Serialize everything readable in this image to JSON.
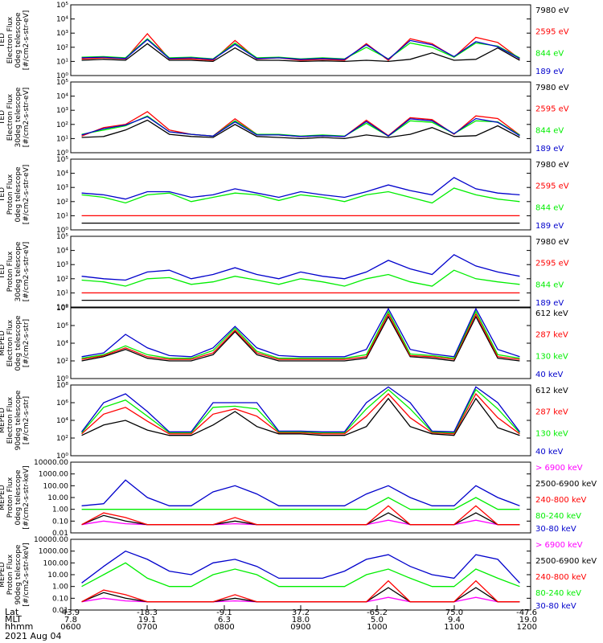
{
  "chart_data": [
    {
      "type": "line",
      "instrument": "TED",
      "ylabel": [
        "TED",
        "Electron Flux",
        "0deg telescope",
        "[#/cm2-s-str-eV]"
      ],
      "yscale": "log",
      "yticks": [
        "10⁰",
        "10¹",
        "10²",
        "10³",
        "10⁴",
        "10⁵"
      ],
      "ylim": [
        1,
        100000
      ],
      "series": [
        {
          "name": "7980 eV",
          "color": "#000000",
          "values": [
            12,
            14,
            12,
            180,
            12,
            12,
            10,
            90,
            12,
            12,
            10,
            11,
            10,
            12,
            10,
            14,
            40,
            12,
            14,
            90,
            12
          ]
        },
        {
          "name": "2595 eV",
          "color": "#ff0000",
          "values": [
            15,
            18,
            15,
            900,
            15,
            15,
            12,
            300,
            15,
            18,
            12,
            14,
            12,
            180,
            12,
            400,
            180,
            20,
            500,
            220,
            15
          ]
        },
        {
          "name": "844 eV",
          "color": "#00ee00",
          "values": [
            20,
            22,
            18,
            400,
            18,
            20,
            15,
            200,
            18,
            20,
            15,
            18,
            15,
            100,
            15,
            200,
            100,
            20,
            200,
            120,
            18
          ]
        },
        {
          "name": "189 eV",
          "color": "#0000cc",
          "values": [
            18,
            20,
            16,
            350,
            16,
            18,
            14,
            160,
            16,
            18,
            14,
            16,
            14,
            150,
            14,
            300,
            150,
            22,
            250,
            110,
            16
          ]
        }
      ]
    },
    {
      "type": "line",
      "instrument": "TED",
      "ylabel": [
        "TED",
        "Electron Flux",
        "30deg telescope",
        "[#/cm2-s-str-eV]"
      ],
      "yscale": "log",
      "yticks": [
        "10⁰",
        "10¹",
        "10²",
        "10³",
        "10⁴",
        "10⁵"
      ],
      "ylim": [
        1,
        100000
      ],
      "series": [
        {
          "name": "7980 eV",
          "color": "#000000",
          "values": [
            12,
            14,
            40,
            200,
            20,
            14,
            12,
            100,
            14,
            12,
            10,
            12,
            10,
            18,
            12,
            20,
            60,
            14,
            16,
            80,
            12
          ]
        },
        {
          "name": "2595 eV",
          "color": "#ff0000",
          "values": [
            15,
            60,
            100,
            800,
            40,
            20,
            15,
            250,
            20,
            18,
            14,
            16,
            14,
            200,
            16,
            300,
            220,
            20,
            400,
            260,
            18
          ]
        },
        {
          "name": "844 eV",
          "color": "#00ee00",
          "values": [
            20,
            40,
            80,
            400,
            30,
            20,
            15,
            180,
            20,
            20,
            15,
            18,
            15,
            120,
            15,
            180,
            140,
            22,
            180,
            150,
            18
          ]
        },
        {
          "name": "189 eV",
          "color": "#0000cc",
          "values": [
            18,
            50,
            90,
            350,
            30,
            20,
            15,
            150,
            18,
            18,
            14,
            16,
            14,
            160,
            15,
            250,
            180,
            22,
            260,
            140,
            16
          ]
        }
      ]
    },
    {
      "type": "line",
      "instrument": "TED",
      "ylabel": [
        "TED",
        "Proton Flux",
        "0deg telescope",
        "[#/cm2-s-str-eV]"
      ],
      "yscale": "log",
      "yticks": [
        "10⁰",
        "10¹",
        "10²",
        "10³",
        "10⁴",
        "10⁵"
      ],
      "ylim": [
        1,
        100000
      ],
      "series": [
        {
          "name": "7980 eV",
          "color": "#000000",
          "values": [
            3,
            3,
            3,
            3,
            3,
            3,
            3,
            3,
            3,
            3,
            3,
            3,
            3,
            3,
            3,
            3,
            3,
            3,
            3,
            3,
            3
          ]
        },
        {
          "name": "2595 eV",
          "color": "#ff0000",
          "values": [
            10,
            10,
            10,
            10,
            10,
            10,
            10,
            10,
            10,
            10,
            10,
            10,
            10,
            10,
            10,
            10,
            10,
            10,
            10,
            10,
            10
          ]
        },
        {
          "name": "844 eV",
          "color": "#00ee00",
          "values": [
            300,
            200,
            80,
            300,
            400,
            100,
            200,
            400,
            300,
            120,
            300,
            200,
            100,
            300,
            500,
            200,
            80,
            900,
            300,
            150,
            100
          ]
        },
        {
          "name": "189 eV",
          "color": "#0000cc",
          "values": [
            400,
            300,
            150,
            500,
            500,
            200,
            300,
            800,
            400,
            200,
            500,
            300,
            200,
            500,
            1500,
            600,
            300,
            5000,
            800,
            400,
            300
          ]
        }
      ]
    },
    {
      "type": "line",
      "instrument": "TED",
      "ylabel": [
        "TED",
        "Proton Flux",
        "30deg telescope",
        "[#/cm2-s-str-eV]"
      ],
      "yscale": "log",
      "yticks": [
        "10⁰",
        "10¹",
        "10²",
        "10³",
        "10⁴",
        "10⁵"
      ],
      "ylim": [
        1,
        100000
      ],
      "series": [
        {
          "name": "7980 eV",
          "color": "#000000",
          "values": [
            3,
            3,
            3,
            3,
            3,
            3,
            3,
            3,
            3,
            3,
            3,
            3,
            3,
            3,
            3,
            3,
            3,
            3,
            3,
            3,
            3
          ]
        },
        {
          "name": "2595 eV",
          "color": "#ff0000",
          "values": [
            10,
            10,
            10,
            10,
            10,
            10,
            10,
            10,
            10,
            10,
            10,
            10,
            10,
            10,
            10,
            10,
            10,
            10,
            10,
            10,
            10
          ]
        },
        {
          "name": "844 eV",
          "color": "#00ee00",
          "values": [
            80,
            60,
            30,
            100,
            120,
            40,
            60,
            150,
            80,
            40,
            100,
            60,
            30,
            100,
            200,
            60,
            30,
            400,
            100,
            60,
            40
          ]
        },
        {
          "name": "189 eV",
          "color": "#0000cc",
          "values": [
            150,
            100,
            80,
            300,
            400,
            100,
            200,
            600,
            200,
            100,
            300,
            150,
            100,
            300,
            2000,
            500,
            200,
            5000,
            800,
            300,
            150
          ]
        }
      ]
    },
    {
      "type": "line",
      "instrument": "MEPED",
      "ylabel": [
        "MEPED",
        "Electron Flux",
        "0deg telescope",
        "[#/cm2-s-str]"
      ],
      "yscale": "log",
      "yticks": [
        "10⁰",
        "10²",
        "10⁴",
        "10⁶",
        "10⁸"
      ],
      "ylim": [
        1,
        100000000
      ],
      "series": [
        {
          "name": "612 keV",
          "color": "#000000",
          "values": [
            100,
            300,
            2000,
            200,
            100,
            100,
            500,
            200000,
            500,
            100,
            100,
            100,
            100,
            200,
            10000000,
            300,
            200,
            100,
            10000000,
            200,
            100
          ]
        },
        {
          "name": "287 keV",
          "color": "#ff0000",
          "values": [
            150,
            400,
            3000,
            300,
            150,
            150,
            800,
            300000,
            800,
            150,
            150,
            150,
            150,
            300,
            20000000,
            400,
            300,
            150,
            20000000,
            300,
            150
          ]
        },
        {
          "name": "130 keV",
          "color": "#00ee00",
          "values": [
            200,
            500,
            5000,
            500,
            200,
            200,
            1500,
            500000,
            1200,
            200,
            200,
            200,
            200,
            500,
            40000000,
            600,
            400,
            200,
            40000000,
            500,
            200
          ]
        },
        {
          "name": "40 keV",
          "color": "#0000cc",
          "values": [
            300,
            800,
            100000,
            3000,
            400,
            300,
            3000,
            800000,
            3000,
            400,
            300,
            300,
            300,
            2000,
            80000000,
            2000,
            600,
            300,
            80000000,
            2000,
            300
          ]
        }
      ]
    },
    {
      "type": "line",
      "instrument": "MEPED",
      "ylabel": [
        "MEPED",
        "Electron Flux",
        "90deg telescope",
        "[#/cm2-s-str]"
      ],
      "yscale": "log",
      "yticks": [
        "10⁰",
        "10²",
        "10⁴",
        "10⁶",
        "10⁸"
      ],
      "ylim": [
        1,
        100000000
      ],
      "series": [
        {
          "name": "612 keV",
          "color": "#000000",
          "values": [
            200,
            3000,
            10000,
            800,
            200,
            200,
            3000,
            100000,
            2000,
            300,
            300,
            200,
            200,
            2000,
            3000000,
            2000,
            300,
            200,
            3000000,
            1500,
            200
          ]
        },
        {
          "name": "287 keV",
          "color": "#ff0000",
          "values": [
            300,
            50000,
            300000,
            8000,
            300,
            300,
            50000,
            200000,
            30000,
            400,
            400,
            300,
            300,
            30000,
            10000000,
            20000,
            400,
            300,
            10000000,
            20000,
            300
          ]
        },
        {
          "name": "130 keV",
          "color": "#00ee00",
          "values": [
            400,
            300000,
            2000000,
            30000,
            400,
            400,
            300000,
            400000,
            200000,
            500,
            500,
            400,
            400,
            200000,
            30000000,
            200000,
            500,
            400,
            30000000,
            200000,
            400
          ]
        },
        {
          "name": "40 keV",
          "color": "#0000cc",
          "values": [
            500,
            1000000,
            10000000,
            100000,
            500,
            500,
            1000000,
            1000000,
            1000000,
            600,
            600,
            500,
            500,
            1000000,
            60000000,
            1000000,
            600,
            500,
            60000000,
            1000000,
            500
          ]
        }
      ]
    },
    {
      "type": "line",
      "instrument": "MEPED",
      "ylabel": [
        "MEPED",
        "Proton Flux",
        "0deg telescope",
        "[#/cm2-s-str-keV]"
      ],
      "yscale": "log",
      "yticks": [
        "0.01",
        "0.10",
        "1.00",
        "10.00",
        "100.00",
        "1000.00",
        "10000.00"
      ],
      "ylim": [
        0.01,
        10000
      ],
      "series": [
        {
          "name": "> 6900 keV",
          "color": "#ff00ff",
          "values": [
            0.05,
            0.1,
            0.06,
            0.05,
            0.05,
            0.05,
            0.05,
            0.06,
            0.05,
            0.05,
            0.05,
            0.05,
            0.05,
            0.05,
            0.12,
            0.05,
            0.05,
            0.05,
            0.12,
            0.05,
            0.05
          ]
        },
        {
          "name": "2500-6900 keV",
          "color": "#000000",
          "values": [
            0.05,
            0.3,
            0.1,
            0.05,
            0.05,
            0.05,
            0.05,
            0.1,
            0.05,
            0.05,
            0.05,
            0.05,
            0.05,
            0.05,
            0.5,
            0.05,
            0.05,
            0.05,
            0.5,
            0.05,
            0.05
          ]
        },
        {
          "name": "240-800 keV",
          "color": "#ff0000",
          "values": [
            0.05,
            0.5,
            0.2,
            0.05,
            0.05,
            0.05,
            0.05,
            0.2,
            0.05,
            0.05,
            0.05,
            0.05,
            0.05,
            0.05,
            2,
            0.05,
            0.05,
            0.05,
            2,
            0.05,
            0.05
          ]
        },
        {
          "name": "80-240 keV",
          "color": "#00ee00",
          "values": [
            1,
            1,
            1,
            1,
            1,
            1,
            1,
            1,
            1,
            1,
            1,
            1,
            1,
            1,
            10,
            1,
            1,
            1,
            10,
            1,
            1
          ]
        },
        {
          "name": "30-80 keV",
          "color": "#0000cc",
          "values": [
            2,
            3,
            300,
            10,
            2,
            2,
            30,
            100,
            20,
            2,
            2,
            2,
            2,
            20,
            100,
            10,
            2,
            2,
            100,
            10,
            2
          ]
        }
      ]
    },
    {
      "type": "line",
      "instrument": "MEPED",
      "ylabel": [
        "MEPED",
        "Proton Flux",
        "90deg telescope",
        "[#/cm2-s-str-keV]"
      ],
      "yscale": "log",
      "yticks": [
        "0.01",
        "0.10",
        "1.00",
        "10.00",
        "100.00",
        "1000.00",
        "10000.00"
      ],
      "ylim": [
        0.01,
        10000
      ],
      "series": [
        {
          "name": "> 6900 keV",
          "color": "#ff00ff",
          "values": [
            0.05,
            0.1,
            0.06,
            0.05,
            0.05,
            0.05,
            0.05,
            0.06,
            0.05,
            0.05,
            0.05,
            0.05,
            0.05,
            0.05,
            0.12,
            0.05,
            0.05,
            0.05,
            0.12,
            0.05,
            0.05
          ]
        },
        {
          "name": "2500-6900 keV",
          "color": "#000000",
          "values": [
            0.05,
            0.3,
            0.1,
            0.05,
            0.05,
            0.05,
            0.05,
            0.1,
            0.05,
            0.05,
            0.05,
            0.05,
            0.05,
            0.05,
            0.8,
            0.05,
            0.05,
            0.05,
            0.8,
            0.05,
            0.05
          ]
        },
        {
          "name": "240-800 keV",
          "color": "#ff0000",
          "values": [
            0.05,
            0.5,
            0.2,
            0.05,
            0.05,
            0.05,
            0.05,
            0.2,
            0.05,
            0.05,
            0.05,
            0.05,
            0.05,
            0.05,
            3,
            0.05,
            0.05,
            0.05,
            3,
            0.05,
            0.05
          ]
        },
        {
          "name": "80-240 keV",
          "color": "#00ee00",
          "values": [
            1,
            10,
            100,
            5,
            1,
            1,
            10,
            30,
            10,
            1,
            1,
            1,
            1,
            10,
            30,
            5,
            1,
            1,
            30,
            5,
            1
          ]
        },
        {
          "name": "30-80 keV",
          "color": "#0000cc",
          "values": [
            2,
            50,
            1000,
            200,
            20,
            10,
            100,
            200,
            50,
            5,
            5,
            5,
            20,
            200,
            500,
            50,
            10,
            5,
            500,
            200,
            2
          ]
        }
      ]
    }
  ],
  "x_axis": {
    "row_labels": [
      "Lat",
      "MLT",
      "hhmm"
    ],
    "ticks": [
      {
        "Lat": "43.9",
        "MLT": "7.8",
        "hhmm": "0600"
      },
      {
        "Lat": "-18.3",
        "MLT": "19.1",
        "hhmm": "0700"
      },
      {
        "Lat": "-9.1",
        "MLT": "6.3",
        "hhmm": "0800"
      },
      {
        "Lat": "37.2",
        "MLT": "18.0",
        "hhmm": "0900"
      },
      {
        "Lat": "-65.2",
        "MLT": "5.0",
        "hhmm": "1000"
      },
      {
        "Lat": "75.0",
        "MLT": "9.4",
        "hhmm": "1100"
      },
      {
        "Lat": "-47.6",
        "MLT": "19.0",
        "hhmm": "1200"
      }
    ],
    "date": "2021 Aug 04"
  }
}
